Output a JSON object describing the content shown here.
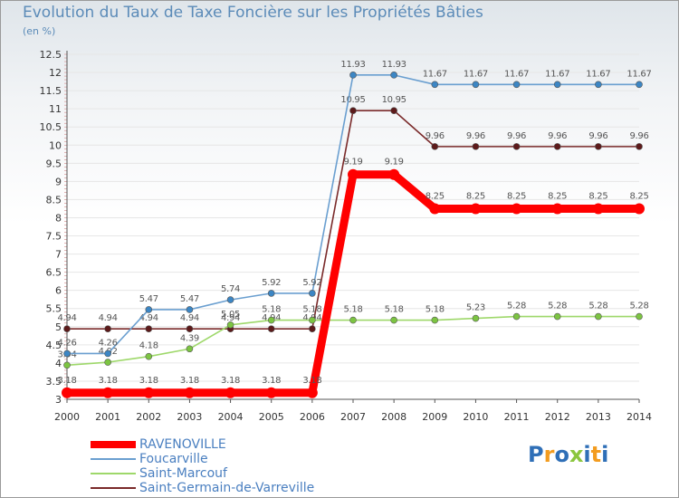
{
  "title": "Evolution du Taux de Taxe Foncière sur les Propriétés Bâties",
  "subtitle": "(en %)",
  "logo": {
    "letters": [
      "P",
      "r",
      "o",
      "x",
      "i",
      "t",
      "i"
    ],
    "colors": [
      "#2f6fb7",
      "#f39c1f",
      "#2f6fb7",
      "#8bc63e",
      "#2f6fb7",
      "#f39c1f",
      "#2f6fb7"
    ]
  },
  "chart_data": {
    "type": "line",
    "title": "Evolution du Taux de Taxe Foncière sur les Propriétés Bâties",
    "ylabel": "(en %)",
    "xlabel": "",
    "ylim": [
      3,
      12.5
    ],
    "y_ticks": [
      "3",
      "3.5",
      "4",
      "4.5",
      "5",
      "5.5",
      "6",
      "6.5",
      "7",
      "7.5",
      "8",
      "8.5",
      "9",
      "9.5",
      "10",
      "10.5",
      "11",
      "11.5",
      "12",
      "12.5"
    ],
    "categories": [
      "2000",
      "2001",
      "2002",
      "2003",
      "2004",
      "2005",
      "2006",
      "2007",
      "2008",
      "2009",
      "2010",
      "2011",
      "2012",
      "2013",
      "2014"
    ],
    "legend_position": "bottom-left",
    "series": [
      {
        "name": "Saint-Germain-de-Varreville",
        "color": "#7a2a2a",
        "marker": "#5c1a1a",
        "values": [
          4.94,
          4.94,
          4.94,
          4.94,
          4.94,
          4.94,
          4.94,
          10.95,
          10.95,
          9.96,
          9.96,
          9.96,
          9.96,
          9.96,
          9.96
        ],
        "labels": [
          "4.94",
          "4.94",
          "4.94",
          "4.94",
          "4.94",
          "4.94",
          "4.94",
          "10.95",
          "10.95",
          "9.96",
          "9.96",
          "9.96",
          "9.96",
          "9.96",
          "9.96"
        ]
      },
      {
        "name": "Saint-Marcouf",
        "color": "#9ed86a",
        "marker": "#7cc442",
        "values": [
          3.94,
          4.02,
          4.18,
          4.39,
          5.05,
          5.18,
          5.18,
          5.18,
          5.18,
          5.18,
          5.23,
          5.28,
          5.28,
          5.28,
          5.28
        ],
        "labels": [
          "3.94",
          "4.02",
          "4.18",
          "4.39",
          "5.05",
          "5.18",
          "5.18",
          "5.18",
          "5.18",
          "5.18",
          "5.23",
          "5.28",
          "5.28",
          "5.28",
          "5.28"
        ]
      },
      {
        "name": "Foucarville",
        "color": "#6a9fd0",
        "marker": "#3c86c4",
        "values": [
          4.26,
          4.26,
          5.47,
          5.47,
          5.74,
          5.92,
          5.92,
          11.93,
          11.93,
          11.67,
          11.67,
          11.67,
          11.67,
          11.67,
          11.67
        ],
        "labels": [
          "4.26",
          "4.26",
          "5.47",
          "5.47",
          "5.74",
          "5.92",
          "5.92",
          "11.93",
          "11.93",
          "11.67",
          "11.67",
          "11.67",
          "11.67",
          "11.67",
          "11.67"
        ]
      },
      {
        "name": "RAVENOVILLE",
        "color": "#ff0000",
        "marker": "#ff0000",
        "values": [
          3.18,
          3.18,
          3.18,
          3.18,
          3.18,
          3.18,
          3.18,
          9.19,
          9.19,
          8.25,
          8.25,
          8.25,
          8.25,
          8.25,
          8.25
        ],
        "labels": [
          "3.18",
          "3.18",
          "3.18",
          "3.18",
          "3.18",
          "3.18",
          "3.18",
          "9.19",
          "9.19",
          "8.25",
          "8.25",
          "8.25",
          "8.25",
          "8.25",
          "8.25"
        ]
      }
    ],
    "legend": [
      {
        "name": "RAVENOVILLE",
        "color": "#ff0000"
      },
      {
        "name": "Foucarville",
        "color": "#6a9fd0"
      },
      {
        "name": "Saint-Marcouf",
        "color": "#9ed86a"
      },
      {
        "name": "Saint-Germain-de-Varreville",
        "color": "#7a2a2a"
      }
    ]
  }
}
